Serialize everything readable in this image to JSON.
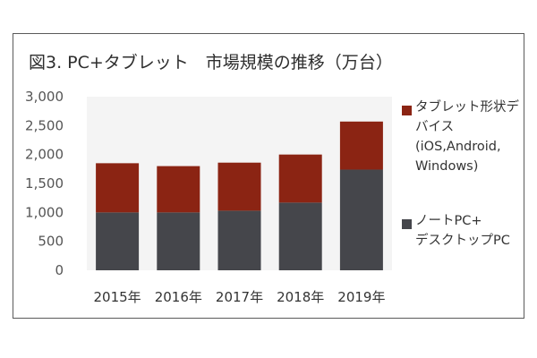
{
  "chart_data": {
    "type": "bar",
    "stacked": true,
    "title": "図3. PC+タブレット　市場規模の推移（万台）",
    "categories": [
      "2015年",
      "2016年",
      "2017年",
      "2018年",
      "2019年"
    ],
    "series": [
      {
        "name": "ノートPC+デスクトップPC",
        "legend_lines": [
          "ノートPC+",
          "デスクトップPC"
        ],
        "color": "#45464b",
        "values": [
          1000,
          1000,
          1030,
          1170,
          1740
        ]
      },
      {
        "name": "タブレット形状デバイス (iOS,Android,Windows)",
        "legend_lines": [
          "タブレット形状デ",
          "バイス",
          "(iOS,Android,",
          "Windows)"
        ],
        "color": "#8b2413",
        "values": [
          850,
          800,
          830,
          830,
          830
        ]
      }
    ],
    "yticks": [
      "0",
      "500",
      "1,000",
      "1,500",
      "2,000",
      "2,500",
      "3,000"
    ],
    "ylim": [
      0,
      3000
    ],
    "xlabel": "",
    "ylabel": "",
    "grid": false,
    "legend_position": "right",
    "plot_background": "#f4f4f4"
  }
}
